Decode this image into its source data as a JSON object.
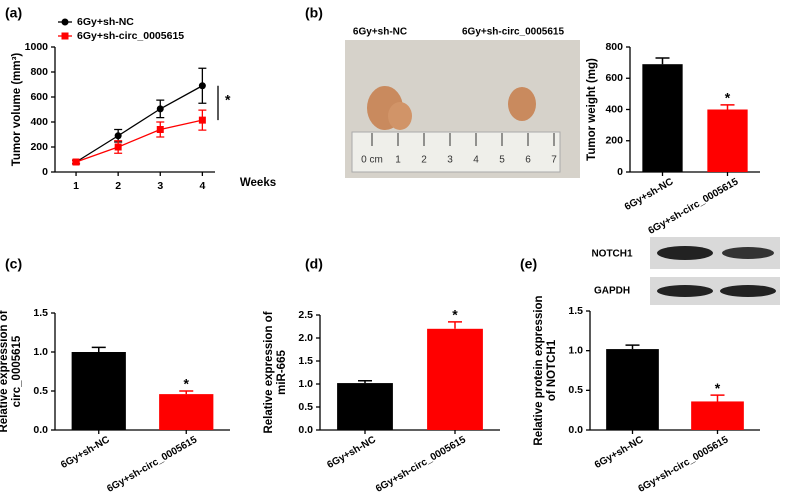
{
  "chart_data": [
    {
      "type": "line",
      "panel_label": "(a)",
      "ylabel": [
        "Tumor volume (mm³)"
      ],
      "xlabel": "Weeks",
      "x": [
        1,
        2,
        3,
        4
      ],
      "xlim": [
        0.5,
        4.3
      ],
      "xticks": [
        1,
        2,
        3,
        4
      ],
      "ylim": [
        0,
        1000
      ],
      "yticks": [
        0,
        200,
        400,
        600,
        800,
        1000
      ],
      "series": [
        {
          "name": "6Gy+sh-NC",
          "color": "#000000",
          "marker": "circle",
          "values": [
            80,
            290,
            505,
            690
          ],
          "errors": [
            15,
            50,
            70,
            140
          ]
        },
        {
          "name": "6Gy+sh-circ_0005615",
          "color": "#ff0000",
          "marker": "square",
          "values": [
            80,
            200,
            340,
            415
          ],
          "errors": [
            10,
            50,
            60,
            80
          ]
        }
      ],
      "legend": "upper left",
      "significance": "*"
    },
    {
      "type": "bar",
      "panel_label": "(b)",
      "ylabel": [
        "Tumor weight (mg)"
      ],
      "categories": [
        "6Gy+sh-NC",
        "6Gy+sh-circ_0005615"
      ],
      "values": [
        690,
        400
      ],
      "errors": [
        40,
        30
      ],
      "colors": [
        "#000000",
        "#ff0000"
      ],
      "ylim": [
        0,
        800
      ],
      "yticks": [
        0,
        200,
        400,
        600,
        800
      ],
      "significance": "*",
      "photo_labels": [
        "6Gy+sh-NC",
        "6Gy+sh-circ_0005615"
      ],
      "ruler_labels": [
        "0 cm",
        "1",
        "2",
        "3",
        "4",
        "5",
        "6",
        "7"
      ]
    },
    {
      "type": "bar",
      "panel_label": "(c)",
      "ylabel": [
        "Relative expression of",
        "circ_0005615"
      ],
      "categories": [
        "6Gy+sh-NC",
        "6Gy+sh-circ_0005615"
      ],
      "values": [
        1.0,
        0.46
      ],
      "errors": [
        0.06,
        0.04
      ],
      "colors": [
        "#000000",
        "#ff0000"
      ],
      "ylim": [
        0,
        1.5
      ],
      "yticks": [
        {
          "value": 0,
          "label": "0.0"
        },
        0.5,
        {
          "value": 1,
          "label": "1.0"
        },
        1.5
      ],
      "significance": "*"
    },
    {
      "type": "bar",
      "panel_label": "(d)",
      "ylabel": [
        "Relative expression of",
        "miR-665"
      ],
      "categories": [
        "6Gy+sh-NC",
        "6Gy+sh-circ_0005615"
      ],
      "values": [
        1.02,
        2.2
      ],
      "errors": [
        0.05,
        0.15
      ],
      "colors": [
        "#000000",
        "#ff0000"
      ],
      "ylim": [
        0,
        2.5
      ],
      "yticks": [
        {
          "value": 0,
          "label": "0.0"
        },
        0.5,
        {
          "value": 1,
          "label": "1.0"
        },
        1.5,
        {
          "value": 2,
          "label": "2.0"
        },
        2.5
      ],
      "significance": "*"
    },
    {
      "type": "bar",
      "panel_label": "(e)",
      "ylabel": [
        "Relative protein expression",
        "of NOTCH1"
      ],
      "categories": [
        "6Gy+sh-NC",
        "6Gy+sh-circ_0005615"
      ],
      "values": [
        1.02,
        0.36
      ],
      "errors": [
        0.05,
        0.08
      ],
      "colors": [
        "#000000",
        "#ff0000"
      ],
      "ylim": [
        0,
        1.5
      ],
      "yticks": [
        {
          "value": 0,
          "label": "0.0"
        },
        0.5,
        {
          "value": 1,
          "label": "1.0"
        },
        1.5
      ],
      "significance": "*",
      "blot_labels": [
        "NOTCH1",
        "GAPDH"
      ]
    }
  ]
}
